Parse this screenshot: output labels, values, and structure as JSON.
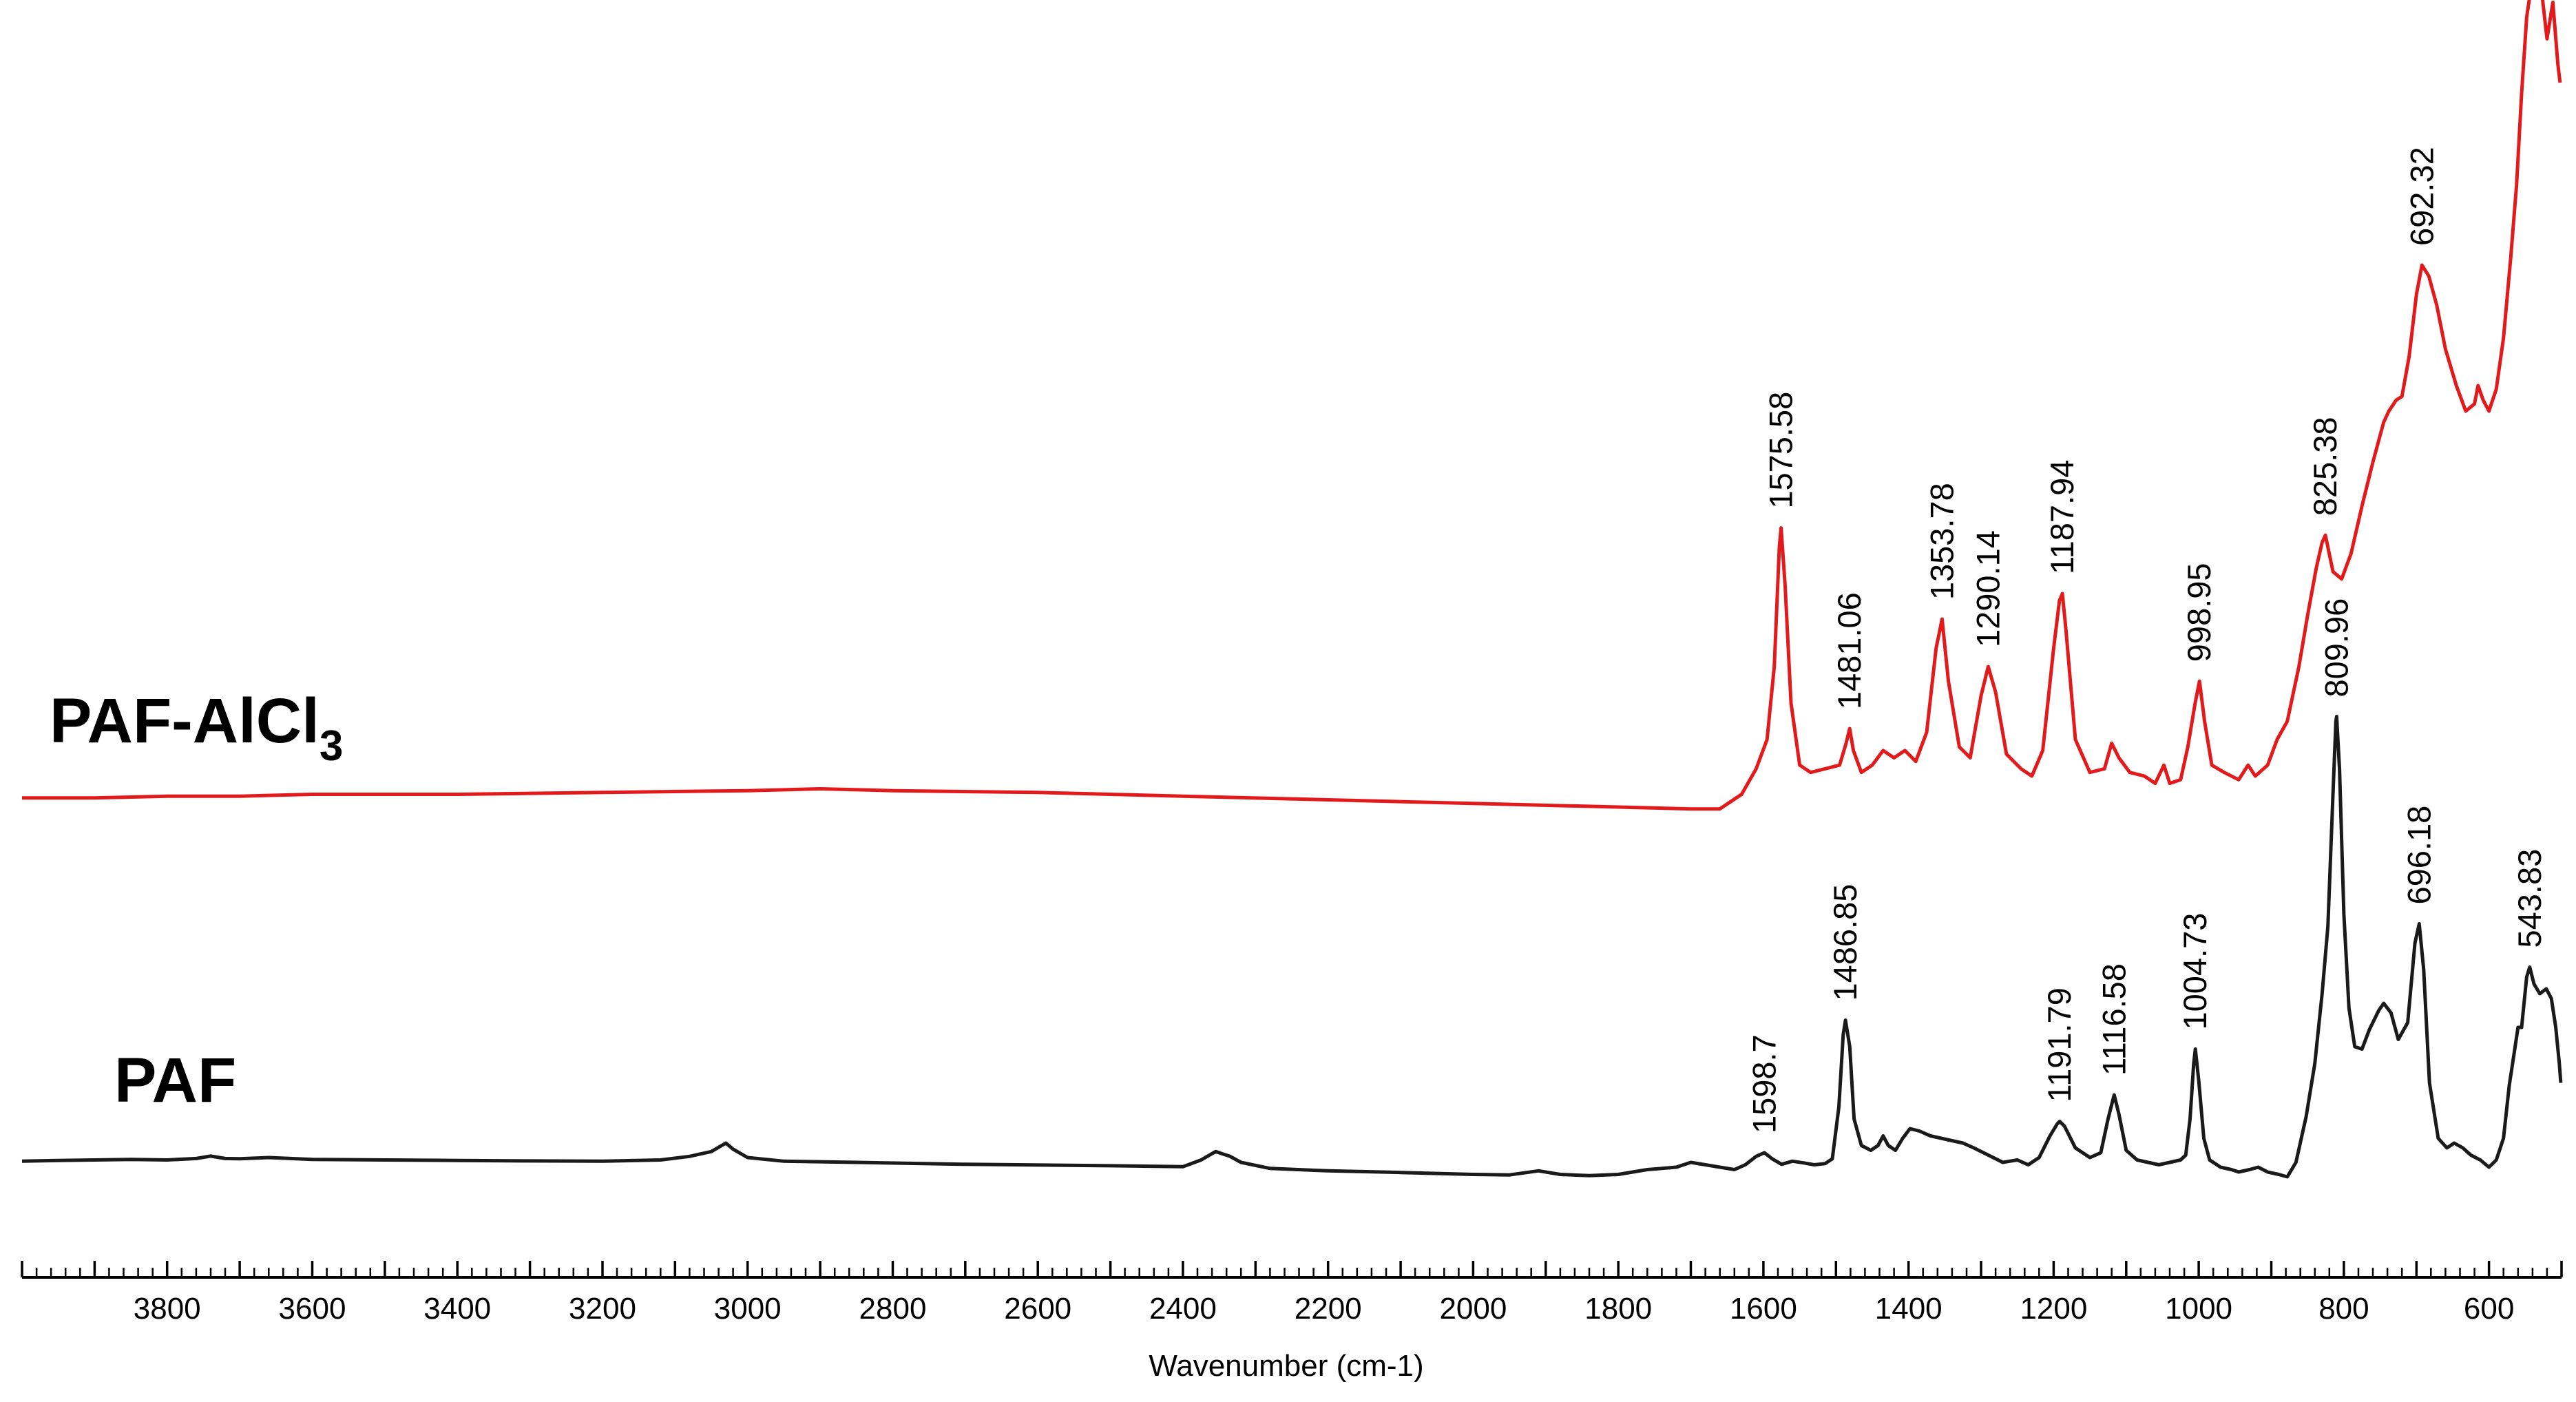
{
  "chart_data": {
    "type": "line",
    "xlabel": "Wavenumber (cm-1)",
    "ylabel": "",
    "xlim": [
      4000,
      500
    ],
    "x_reversed": true,
    "y_axis_shown": false,
    "grid": false,
    "x_ticks": [
      3800,
      3600,
      3400,
      3200,
      3000,
      2800,
      2600,
      2400,
      2200,
      2000,
      1800,
      1600,
      1400,
      1200,
      1000,
      800,
      600
    ],
    "series": [
      {
        "name": "PAF-AlCl",
        "name_subscript": "3",
        "color": "#e31a1c",
        "points": [
          [
            4000,
            0.04
          ],
          [
            3900,
            0.04
          ],
          [
            3800,
            0.045
          ],
          [
            3700,
            0.045
          ],
          [
            3600,
            0.05
          ],
          [
            3400,
            0.05
          ],
          [
            3200,
            0.055
          ],
          [
            3000,
            0.06
          ],
          [
            2900,
            0.065
          ],
          [
            2800,
            0.06
          ],
          [
            2600,
            0.055
          ],
          [
            2400,
            0.045
          ],
          [
            2200,
            0.035
          ],
          [
            2000,
            0.025
          ],
          [
            1800,
            0.015
          ],
          [
            1700,
            0.01
          ],
          [
            1660,
            0.01
          ],
          [
            1630,
            0.05
          ],
          [
            1610,
            0.12
          ],
          [
            1595,
            0.2
          ],
          [
            1585,
            0.4
          ],
          [
            1578,
            0.73
          ],
          [
            1575.58,
            0.78
          ],
          [
            1570,
            0.62
          ],
          [
            1562,
            0.3
          ],
          [
            1550,
            0.13
          ],
          [
            1535,
            0.11
          ],
          [
            1515,
            0.12
          ],
          [
            1495,
            0.13
          ],
          [
            1486,
            0.19
          ],
          [
            1481.06,
            0.23
          ],
          [
            1476,
            0.17
          ],
          [
            1465,
            0.11
          ],
          [
            1450,
            0.13
          ],
          [
            1435,
            0.17
          ],
          [
            1420,
            0.15
          ],
          [
            1405,
            0.17
          ],
          [
            1390,
            0.14
          ],
          [
            1375,
            0.22
          ],
          [
            1362,
            0.45
          ],
          [
            1353.78,
            0.53
          ],
          [
            1345,
            0.36
          ],
          [
            1330,
            0.18
          ],
          [
            1315,
            0.15
          ],
          [
            1300,
            0.32
          ],
          [
            1290.14,
            0.4
          ],
          [
            1280,
            0.33
          ],
          [
            1265,
            0.16
          ],
          [
            1245,
            0.12
          ],
          [
            1230,
            0.1
          ],
          [
            1215,
            0.17
          ],
          [
            1200,
            0.45
          ],
          [
            1192,
            0.58
          ],
          [
            1187.94,
            0.6
          ],
          [
            1183,
            0.5
          ],
          [
            1170,
            0.2
          ],
          [
            1150,
            0.11
          ],
          [
            1130,
            0.12
          ],
          [
            1120,
            0.19
          ],
          [
            1110,
            0.15
          ],
          [
            1095,
            0.11
          ],
          [
            1075,
            0.1
          ],
          [
            1060,
            0.08
          ],
          [
            1048,
            0.13
          ],
          [
            1040,
            0.08
          ],
          [
            1025,
            0.09
          ],
          [
            1015,
            0.18
          ],
          [
            1005,
            0.3
          ],
          [
            998.95,
            0.36
          ],
          [
            992,
            0.25
          ],
          [
            982,
            0.13
          ],
          [
            965,
            0.11
          ],
          [
            945,
            0.09
          ],
          [
            932,
            0.13
          ],
          [
            922,
            0.1
          ],
          [
            905,
            0.13
          ],
          [
            892,
            0.2
          ],
          [
            878,
            0.25
          ],
          [
            862,
            0.4
          ],
          [
            850,
            0.54
          ],
          [
            838,
            0.67
          ],
          [
            830,
            0.74
          ],
          [
            825.38,
            0.76
          ],
          [
            815,
            0.66
          ],
          [
            803,
            0.64
          ],
          [
            790,
            0.71
          ],
          [
            775,
            0.84
          ],
          [
            760,
            0.96
          ],
          [
            745,
            1.07
          ],
          [
            738,
            1.1
          ],
          [
            728,
            1.13
          ],
          [
            720,
            1.14
          ],
          [
            710,
            1.25
          ],
          [
            700,
            1.42
          ],
          [
            692.32,
            1.5
          ],
          [
            683,
            1.47
          ],
          [
            672,
            1.39
          ],
          [
            660,
            1.27
          ],
          [
            645,
            1.17
          ],
          [
            632,
            1.1
          ],
          [
            620,
            1.12
          ],
          [
            615,
            1.17
          ],
          [
            608,
            1.13
          ],
          [
            600,
            1.1
          ],
          [
            590,
            1.16
          ],
          [
            580,
            1.3
          ],
          [
            570,
            1.52
          ],
          [
            562,
            1.72
          ],
          [
            555,
            1.97
          ],
          [
            548,
            2.18
          ],
          [
            542,
            2.26
          ],
          [
            536,
            2.3
          ],
          [
            528,
            2.26
          ],
          [
            520,
            2.12
          ],
          [
            512,
            2.22
          ],
          [
            505,
            2.05
          ],
          [
            502,
            2.0
          ]
        ],
        "peak_labels": [
          "1575.58",
          "1481.06",
          "1353.78",
          "1290.14",
          "1187.94",
          "998.95",
          "825.38",
          "692.32"
        ]
      },
      {
        "name": "PAF",
        "color": "#1a1a1a",
        "points": [
          [
            4000,
            0.025
          ],
          [
            3950,
            0.028
          ],
          [
            3900,
            0.03
          ],
          [
            3850,
            0.032
          ],
          [
            3800,
            0.03
          ],
          [
            3760,
            0.036
          ],
          [
            3740,
            0.046
          ],
          [
            3720,
            0.036
          ],
          [
            3700,
            0.035
          ],
          [
            3660,
            0.04
          ],
          [
            3600,
            0.032
          ],
          [
            3500,
            0.03
          ],
          [
            3400,
            0.028
          ],
          [
            3300,
            0.026
          ],
          [
            3200,
            0.025
          ],
          [
            3120,
            0.03
          ],
          [
            3080,
            0.045
          ],
          [
            3050,
            0.065
          ],
          [
            3030,
            0.1
          ],
          [
            3020,
            0.075
          ],
          [
            3000,
            0.04
          ],
          [
            2950,
            0.025
          ],
          [
            2850,
            0.02
          ],
          [
            2700,
            0.012
          ],
          [
            2500,
            0.006
          ],
          [
            2400,
            0.002
          ],
          [
            2375,
            0.03
          ],
          [
            2355,
            0.065
          ],
          [
            2335,
            0.045
          ],
          [
            2320,
            0.02
          ],
          [
            2280,
            -0.005
          ],
          [
            2200,
            -0.015
          ],
          [
            2100,
            -0.022
          ],
          [
            2000,
            -0.03
          ],
          [
            1950,
            -0.032
          ],
          [
            1910,
            -0.015
          ],
          [
            1880,
            -0.03
          ],
          [
            1840,
            -0.035
          ],
          [
            1800,
            -0.03
          ],
          [
            1760,
            -0.01
          ],
          [
            1720,
            0.0
          ],
          [
            1700,
            0.02
          ],
          [
            1680,
            0.01
          ],
          [
            1660,
            0.0
          ],
          [
            1640,
            -0.01
          ],
          [
            1625,
            0.01
          ],
          [
            1610,
            0.045
          ],
          [
            1598.7,
            0.06
          ],
          [
            1588,
            0.035
          ],
          [
            1575,
            0.012
          ],
          [
            1560,
            0.025
          ],
          [
            1545,
            0.018
          ],
          [
            1530,
            0.01
          ],
          [
            1515,
            0.015
          ],
          [
            1505,
            0.035
          ],
          [
            1496,
            0.25
          ],
          [
            1490,
            0.55
          ],
          [
            1486.85,
            0.61
          ],
          [
            1481,
            0.5
          ],
          [
            1475,
            0.2
          ],
          [
            1465,
            0.09
          ],
          [
            1452,
            0.07
          ],
          [
            1442,
            0.09
          ],
          [
            1435,
            0.13
          ],
          [
            1428,
            0.09
          ],
          [
            1418,
            0.07
          ],
          [
            1408,
            0.12
          ],
          [
            1398,
            0.16
          ],
          [
            1385,
            0.15
          ],
          [
            1370,
            0.13
          ],
          [
            1355,
            0.12
          ],
          [
            1340,
            0.11
          ],
          [
            1325,
            0.1
          ],
          [
            1310,
            0.08
          ],
          [
            1290,
            0.05
          ],
          [
            1270,
            0.02
          ],
          [
            1250,
            0.03
          ],
          [
            1235,
            0.01
          ],
          [
            1220,
            0.04
          ],
          [
            1205,
            0.13
          ],
          [
            1195,
            0.18
          ],
          [
            1191.79,
            0.19
          ],
          [
            1185,
            0.17
          ],
          [
            1170,
            0.08
          ],
          [
            1150,
            0.04
          ],
          [
            1135,
            0.06
          ],
          [
            1125,
            0.2
          ],
          [
            1116.58,
            0.3
          ],
          [
            1110,
            0.22
          ],
          [
            1100,
            0.07
          ],
          [
            1085,
            0.03
          ],
          [
            1070,
            0.02
          ],
          [
            1055,
            0.01
          ],
          [
            1040,
            0.02
          ],
          [
            1025,
            0.03
          ],
          [
            1018,
            0.05
          ],
          [
            1012,
            0.2
          ],
          [
            1007,
            0.43
          ],
          [
            1004.73,
            0.49
          ],
          [
            1000,
            0.36
          ],
          [
            993,
            0.12
          ],
          [
            985,
            0.03
          ],
          [
            970,
            0.0
          ],
          [
            955,
            -0.01
          ],
          [
            945,
            -0.02
          ],
          [
            930,
            -0.01
          ],
          [
            918,
            0.0
          ],
          [
            905,
            -0.02
          ],
          [
            890,
            -0.03
          ],
          [
            878,
            -0.04
          ],
          [
            866,
            0.02
          ],
          [
            852,
            0.21
          ],
          [
            840,
            0.43
          ],
          [
            830,
            0.72
          ],
          [
            822,
            1.0
          ],
          [
            815,
            1.55
          ],
          [
            811,
            1.85
          ],
          [
            809.96,
            1.87
          ],
          [
            806,
            1.65
          ],
          [
            800,
            1.05
          ],
          [
            793,
            0.66
          ],
          [
            785,
            0.5
          ],
          [
            775,
            0.49
          ],
          [
            765,
            0.57
          ],
          [
            752,
            0.65
          ],
          [
            745,
            0.68
          ],
          [
            735,
            0.64
          ],
          [
            725,
            0.53
          ],
          [
            712,
            0.6
          ],
          [
            702,
            0.93
          ],
          [
            696.18,
            1.01
          ],
          [
            690,
            0.82
          ],
          [
            682,
            0.35
          ],
          [
            670,
            0.12
          ],
          [
            658,
            0.08
          ],
          [
            648,
            0.1
          ],
          [
            636,
            0.08
          ],
          [
            625,
            0.05
          ],
          [
            612,
            0.03
          ],
          [
            600,
            0.0
          ],
          [
            590,
            0.03
          ],
          [
            580,
            0.12
          ],
          [
            572,
            0.34
          ],
          [
            566,
            0.46
          ],
          [
            560,
            0.58
          ],
          [
            555,
            0.58
          ],
          [
            548,
            0.79
          ],
          [
            543.83,
            0.83
          ],
          [
            538,
            0.76
          ],
          [
            530,
            0.72
          ],
          [
            521,
            0.74
          ],
          [
            514,
            0.7
          ],
          [
            508,
            0.58
          ],
          [
            503,
            0.43
          ],
          [
            501,
            0.35
          ]
        ],
        "peak_labels": [
          "1598.7",
          "1486.85",
          "1191.79",
          "1116.58",
          "1004.73",
          "809.96",
          "696.18",
          "543.83"
        ]
      }
    ]
  }
}
